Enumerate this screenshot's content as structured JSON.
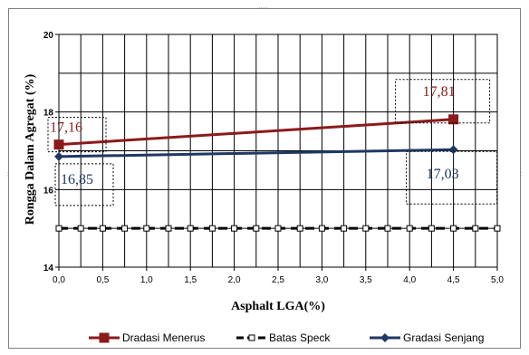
{
  "chart_data": {
    "type": "line",
    "title": "",
    "xlabel": "Asphalt LGA(%)",
    "ylabel": "Rongga Dalam Agregat (%)",
    "xlim": [
      0,
      5
    ],
    "ylim": [
      14,
      20
    ],
    "x_ticks": [
      "0,0",
      "0,5",
      "1,0",
      "1,5",
      "2,0",
      "2,5",
      "3,0",
      "3,5",
      "4,0",
      "4,5",
      "5,0"
    ],
    "y_ticks": [
      "14",
      "16",
      "18",
      "20"
    ],
    "grid": true,
    "legend_position": "bottom",
    "series": [
      {
        "name": "Dradasi Menerus",
        "color": "#8b1a1a",
        "marker": "square",
        "x": [
          0,
          4.5
        ],
        "y": [
          17.16,
          17.81
        ],
        "labels": [
          "17,16",
          "17,81"
        ]
      },
      {
        "name": "Batas Speck",
        "color": "#000000",
        "marker": "square-hollow",
        "dashed": true,
        "x": [
          0,
          0.25,
          0.5,
          0.75,
          1,
          1.25,
          1.5,
          1.75,
          2,
          2.25,
          2.5,
          2.75,
          3,
          3.25,
          3.5,
          3.75,
          4,
          4.25,
          4.5,
          4.75,
          5
        ],
        "y": [
          15,
          15,
          15,
          15,
          15,
          15,
          15,
          15,
          15,
          15,
          15,
          15,
          15,
          15,
          15,
          15,
          15,
          15,
          15,
          15,
          15
        ]
      },
      {
        "name": "Gradasi Senjang",
        "color": "#1f3864",
        "marker": "diamond",
        "x": [
          0,
          4.5
        ],
        "y": [
          16.85,
          17.03
        ],
        "labels": [
          "16,85",
          "17,03"
        ]
      }
    ]
  }
}
